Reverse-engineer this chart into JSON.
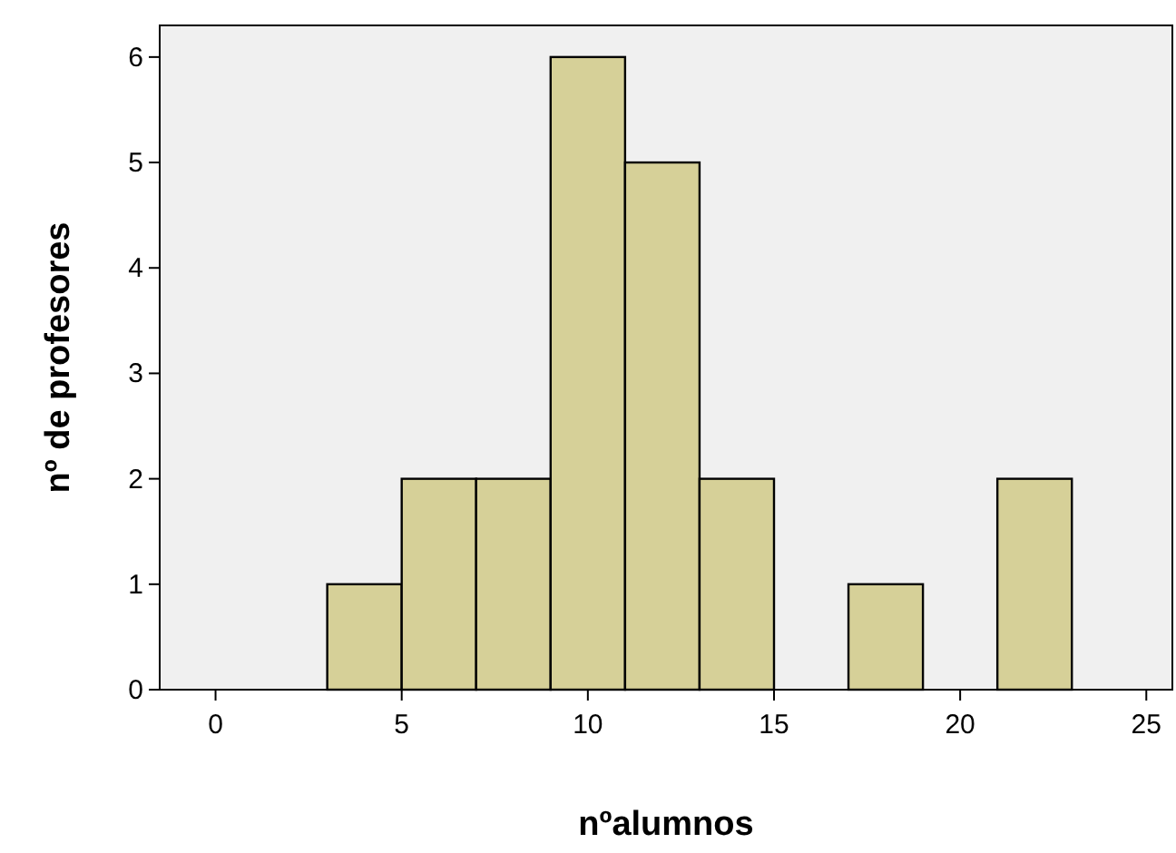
{
  "chart_data": {
    "type": "histogram",
    "xlabel": "nºalumnos",
    "ylabel": "nº de profesores",
    "bins": [
      3,
      5,
      7,
      9,
      11,
      13,
      15,
      17,
      19,
      21,
      23
    ],
    "values": [
      1,
      2,
      2,
      6,
      5,
      2,
      0,
      1,
      0,
      2
    ],
    "color": "#d6d098",
    "xlim": [
      -1.5,
      25.7
    ],
    "xticks": [
      0,
      5,
      10,
      15,
      20,
      25
    ],
    "ylim": [
      0,
      6.3
    ],
    "yticks": [
      0,
      1,
      2,
      3,
      4,
      5,
      6
    ],
    "grid": false
  }
}
